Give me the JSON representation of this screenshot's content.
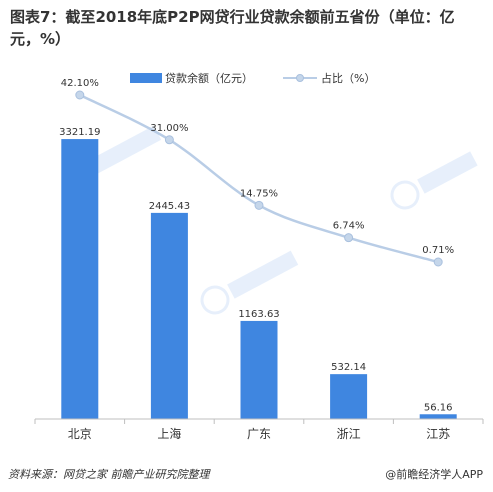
{
  "title": "图表7：截至2018年底P2P网贷行业贷款余额前五省份（单位：亿元，%）",
  "source": "资料来源：网贷之家 前瞻产业研究院整理",
  "brand": "@前瞻经济学人APP",
  "colors": {
    "bar": "#3f86e0",
    "line": "#b9cde6",
    "marker": "#c5d6ea",
    "text": "#333333",
    "axis": "#bfbfbf"
  },
  "chart_data": {
    "type": "bar",
    "categories": [
      "北京",
      "上海",
      "广东",
      "浙江",
      "江苏"
    ],
    "series": [
      {
        "name": "贷款余额（亿元）",
        "type": "bar",
        "values": [
          3321.19,
          2445.43,
          1163.63,
          532.14,
          56.16
        ]
      },
      {
        "name": "占比（%）",
        "type": "line",
        "values": [
          42.1,
          31.0,
          14.75,
          6.74,
          0.71
        ]
      }
    ],
    "bar_labels": [
      "3321.19",
      "2445.43",
      "1163.63",
      "532.14",
      "56.16"
    ],
    "line_labels": [
      "42.10%",
      "31.00%",
      "14.75%",
      "6.74%",
      "0.71%"
    ],
    "legend_position": "top",
    "grid": false
  }
}
